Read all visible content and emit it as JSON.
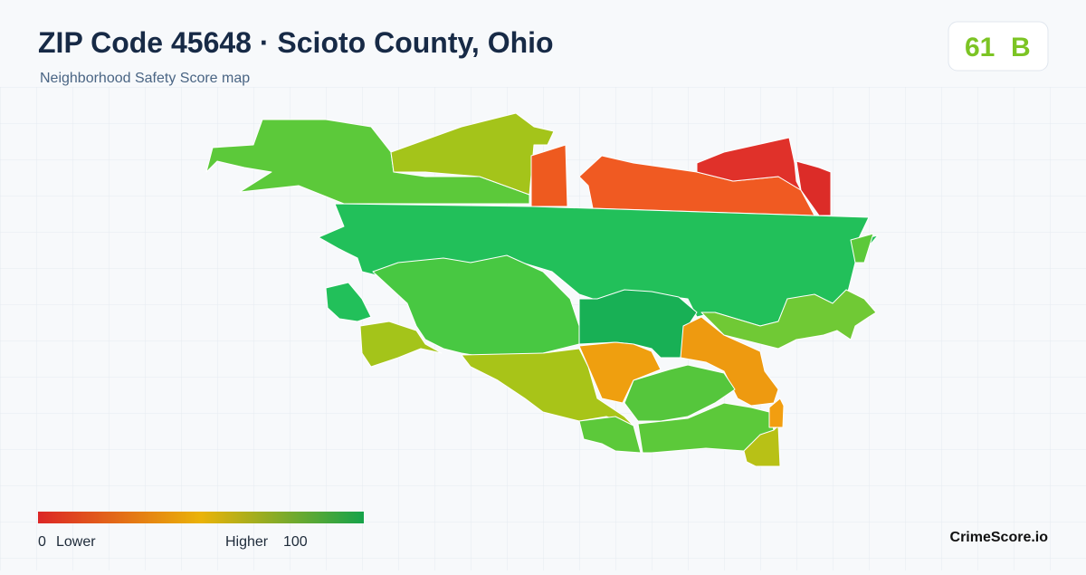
{
  "header": {
    "title": "ZIP Code 45648 · Scioto County, Ohio",
    "subtitle": "Neighborhood Safety Score map"
  },
  "badge": {
    "score": 61,
    "grade": "B"
  },
  "legend": {
    "min": 0,
    "min_label": "Lower",
    "max_label": "Higher",
    "max": 100
  },
  "brand": "CrimeScore.io"
}
